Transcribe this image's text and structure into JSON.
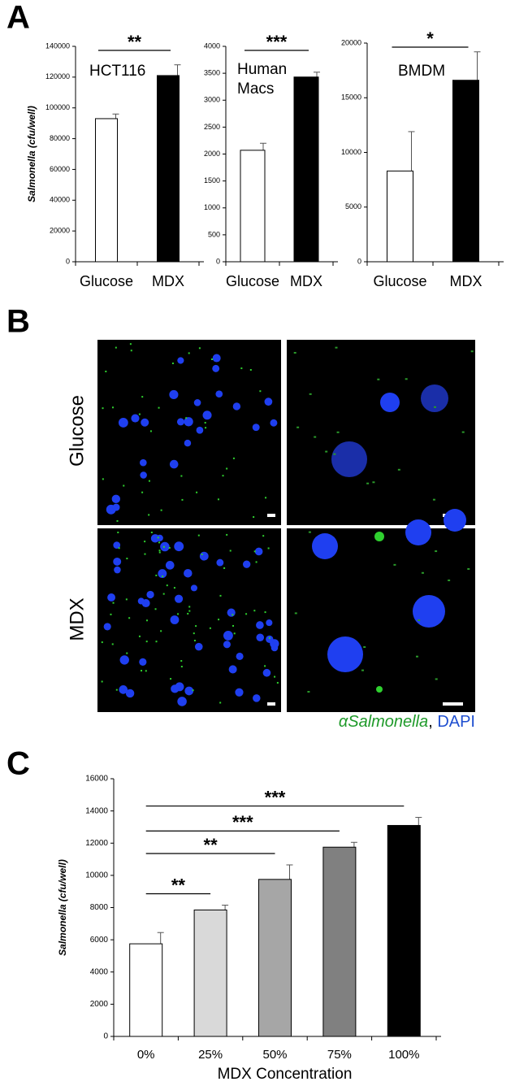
{
  "panel_labels": [
    "A",
    "B",
    "C"
  ],
  "chart_data": [
    {
      "type": "bar",
      "title_lines": [
        "HCT116"
      ],
      "y_label": "Salmonella (cfu/well)",
      "categories": [
        "Glucose",
        "MDX"
      ],
      "values": [
        93000,
        121000
      ],
      "errors": [
        3000,
        7000
      ],
      "colors": [
        "#ffffff",
        "#000000"
      ],
      "ylim": [
        0,
        140000
      ],
      "yticks": [
        0,
        20000,
        40000,
        60000,
        80000,
        100000,
        120000,
        140000
      ],
      "significance": [
        {
          "from": 0,
          "to": 1,
          "label": "**"
        }
      ]
    },
    {
      "type": "bar",
      "title_lines": [
        "Human",
        "Macs"
      ],
      "categories": [
        "Glucose",
        "MDX"
      ],
      "values": [
        2070,
        3430
      ],
      "errors": [
        130,
        90
      ],
      "colors": [
        "#ffffff",
        "#000000"
      ],
      "ylim": [
        0,
        4000
      ],
      "yticks": [
        0,
        500,
        1000,
        1500,
        2000,
        2500,
        3000,
        3500,
        4000
      ],
      "significance": [
        {
          "from": 0,
          "to": 1,
          "label": "***"
        }
      ]
    },
    {
      "type": "bar",
      "title_lines": [
        "BMDM"
      ],
      "categories": [
        "Glucose",
        "MDX"
      ],
      "values": [
        8300,
        16600
      ],
      "errors": [
        3600,
        2600
      ],
      "colors": [
        "#ffffff",
        "#000000"
      ],
      "ylim": [
        0,
        20000
      ],
      "yticks": [
        0,
        5000,
        10000,
        15000,
        20000
      ],
      "significance": [
        {
          "from": 0,
          "to": 1,
          "label": "*"
        }
      ]
    },
    {
      "type": "bar",
      "x_label": "MDX Concentration",
      "y_label": "Salmonella (cfu/well)",
      "categories": [
        "0%",
        "25%",
        "50%",
        "75%",
        "100%"
      ],
      "values": [
        5750,
        7850,
        9750,
        11750,
        13100
      ],
      "errors": [
        700,
        300,
        900,
        300,
        500
      ],
      "colors": [
        "#ffffff",
        "#d9d9d9",
        "#a6a6a6",
        "#808080",
        "#000000"
      ],
      "ylim": [
        0,
        16000
      ],
      "yticks": [
        0,
        2000,
        4000,
        6000,
        8000,
        10000,
        12000,
        14000,
        16000
      ],
      "significance": [
        {
          "from": 0,
          "to": 1,
          "label": "**"
        },
        {
          "from": 0,
          "to": 2,
          "label": "**"
        },
        {
          "from": 0,
          "to": 3,
          "label": "***"
        },
        {
          "from": 0,
          "to": 4,
          "label": "***"
        }
      ]
    }
  ],
  "microscopy": {
    "rows": [
      "Glucose",
      "MDX"
    ],
    "stains": [
      {
        "name": "αSalmonella",
        "color": "#1f9a2a"
      },
      {
        "name": "DAPI",
        "color": "#1f4fd0"
      }
    ],
    "separator": ", "
  }
}
